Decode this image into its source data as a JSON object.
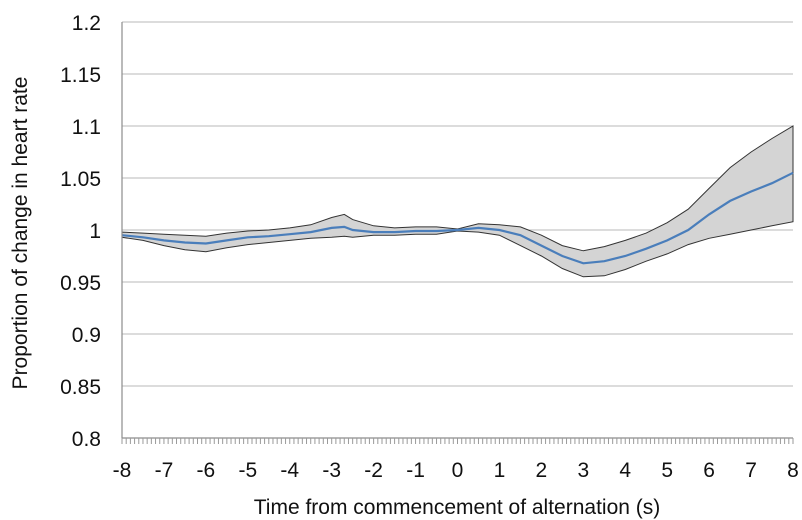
{
  "chart_data": {
    "type": "line",
    "title": "",
    "xlabel": "Time from commencement of alternation (s)",
    "ylabel": "Proportion of change in heart rate",
    "xlim": [
      -8,
      8
    ],
    "ylim": [
      0.8,
      1.2
    ],
    "x_ticks": [
      "-8",
      "-7",
      "-6",
      "-5",
      "-4",
      "-3",
      "-2",
      "-1",
      "0",
      "1",
      "2",
      "3",
      "4",
      "5",
      "6",
      "7",
      "8"
    ],
    "y_ticks": [
      "0.8",
      "0.85",
      "0.9",
      "0.95",
      "1",
      "1.05",
      "1.1",
      "1.15",
      "1.2"
    ],
    "grid": "horizontal",
    "series": [
      {
        "values_x": [
          -8,
          -7.5,
          -7,
          -6.5,
          -6,
          -5.5,
          -5,
          -4.5,
          -4,
          -3.5,
          -3,
          -2.7,
          -2.5,
          -2,
          -1.5,
          -1,
          -0.5,
          0,
          0.5,
          1,
          1.5,
          2,
          2.5,
          3,
          3.5,
          4,
          4.5,
          5,
          5.5,
          6,
          6.5,
          7,
          7.5,
          8
        ],
        "values_y": [
          0.995,
          0.993,
          0.99,
          0.988,
          0.987,
          0.99,
          0.993,
          0.994,
          0.996,
          0.998,
          1.002,
          1.003,
          1.0,
          0.998,
          0.998,
          0.999,
          0.999,
          1.0,
          1.002,
          1.0,
          0.995,
          0.985,
          0.975,
          0.968,
          0.97,
          0.975,
          0.982,
          0.99,
          1.0,
          1.015,
          1.028,
          1.037,
          1.045,
          1.055
        ],
        "lower": [
          0.993,
          0.99,
          0.985,
          0.981,
          0.979,
          0.983,
          0.986,
          0.988,
          0.99,
          0.992,
          0.993,
          0.994,
          0.993,
          0.995,
          0.995,
          0.996,
          0.996,
          0.999,
          0.998,
          0.995,
          0.985,
          0.975,
          0.963,
          0.955,
          0.956,
          0.962,
          0.97,
          0.977,
          0.986,
          0.992,
          0.996,
          1.0,
          1.004,
          1.008
        ],
        "upper": [
          0.998,
          0.997,
          0.996,
          0.995,
          0.994,
          0.997,
          0.999,
          1.0,
          1.002,
          1.005,
          1.012,
          1.015,
          1.01,
          1.004,
          1.002,
          1.003,
          1.003,
          1.001,
          1.006,
          1.005,
          1.003,
          0.995,
          0.985,
          0.98,
          0.984,
          0.99,
          0.997,
          1.007,
          1.02,
          1.04,
          1.06,
          1.075,
          1.088,
          1.1
        ],
        "color": "#4a7ebb",
        "band_color": "#d4d4d4"
      }
    ]
  }
}
